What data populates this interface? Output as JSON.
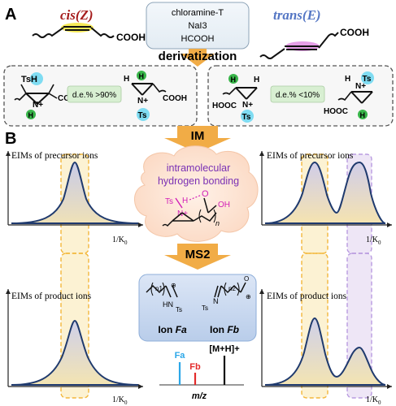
{
  "panel_a": {
    "label": "A",
    "cis_title": "cis(Z)",
    "trans_title": "trans(E)",
    "cooh": "COOH",
    "reagents": [
      "chloramine-T",
      "NaI3",
      "HCOOH"
    ],
    "derivatization": "derivatization",
    "cis_product": {
      "de_label": "d.e.% >90%"
    },
    "trans_product": {
      "de_label": "d.e.% <10%"
    },
    "atom_h": "H",
    "atom_ts": "Ts",
    "atom_tsh": "TsH",
    "atom_n_plus": "N+",
    "cooh_product": "COOH",
    "hooc_product": "HOOC"
  },
  "panel_b": {
    "label": "B",
    "im_label": "IM",
    "ms2_label": "MS2",
    "cloud_text": [
      "intramolecular",
      "hydrogen bonding"
    ],
    "cloud_mol": {
      "ts": "Ts",
      "h": "H",
      "o": "O",
      "oh": "OH",
      "n_plus": "N+",
      "n": "n"
    },
    "precursor_title": "EIMs of precursor ions",
    "product_title": "EIMs of product ions",
    "x_axis": "1/K0",
    "ions": {
      "fa": {
        "label": "Ion Fa",
        "n": "n1",
        "nh": "HN",
        "ts": "Ts"
      },
      "fb": {
        "label": "Ion Fb",
        "n": "n2",
        "ts": "Ts",
        "n_atom": "N"
      }
    },
    "ms": {
      "fa": "Fa",
      "fb": "Fb",
      "mh": "[M+H]+",
      "x_axis": "m/z"
    }
  },
  "colors": {
    "cis_red": "#a51c1c",
    "trans_blue": "#5476c4",
    "curve": "#1f3a6e",
    "fill_purple": "#cfc8e6",
    "fill_yellow": "#f3e5b0",
    "band_yellow": "#f6d982",
    "band_purple": "#cdb6e6",
    "cyan": "#7fdcf2",
    "green": "#39b54a",
    "orange_arrow": "#f1ac46",
    "cloud": "#fde1cf"
  }
}
